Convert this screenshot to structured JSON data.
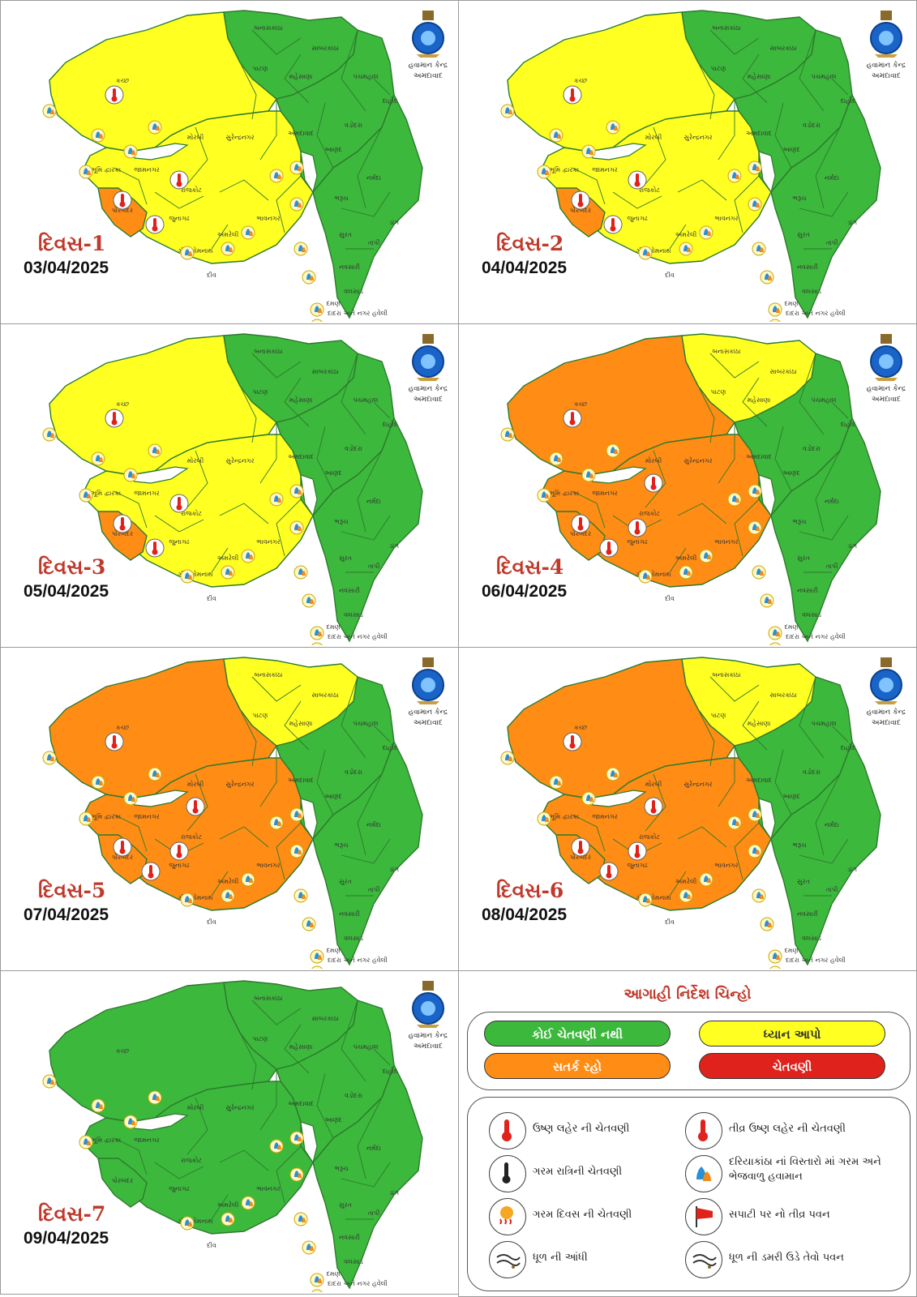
{
  "org": {
    "line1": "હવામાન કેન્દ્ર",
    "line2": "અમદાવાદ"
  },
  "colors": {
    "green": "#3cb83c",
    "yellow": "#ffff22",
    "orange": "#ff8c14",
    "red": "#e0221c",
    "border": "#2d7a2d"
  },
  "maps": [
    {
      "day": "દિવસ-1",
      "date": "03/04/2025",
      "regions": {
        "kutch": "yellow",
        "saurashtra": "yellow",
        "porbandar": "orange",
        "north": "green",
        "central": "green",
        "south": "green"
      }
    },
    {
      "day": "દિવસ-2",
      "date": "04/04/2025",
      "regions": {
        "kutch": "yellow",
        "saurashtra": "yellow",
        "porbandar": "orange",
        "north": "green",
        "central": "green",
        "south": "green"
      }
    },
    {
      "day": "દિવસ-3",
      "date": "05/04/2025",
      "regions": {
        "kutch": "yellow",
        "saurashtra": "yellow",
        "porbandar": "orange",
        "north": "green",
        "central": "green",
        "south": "green"
      }
    },
    {
      "day": "દિવસ-4",
      "date": "06/04/2025",
      "regions": {
        "kutch": "orange",
        "saurashtra": "orange",
        "porbandar": "orange",
        "north": "yellow",
        "central": "green",
        "south": "green"
      }
    },
    {
      "day": "દિવસ-5",
      "date": "07/04/2025",
      "regions": {
        "kutch": "orange",
        "saurashtra": "orange",
        "porbandar": "orange",
        "north": "yellow",
        "central": "green",
        "south": "green"
      }
    },
    {
      "day": "દિવસ-6",
      "date": "08/04/2025",
      "regions": {
        "kutch": "orange",
        "saurashtra": "orange",
        "porbandar": "orange",
        "north": "yellow",
        "central": "green",
        "south": "green"
      }
    },
    {
      "day": "દિવસ-7",
      "date": "09/04/2025",
      "regions": {
        "kutch": "green",
        "saurashtra": "green",
        "porbandar": "green",
        "north": "green",
        "central": "green",
        "south": "green"
      }
    }
  ],
  "legend": {
    "title": "આગાહી નિર્દેશ ચિન્હો",
    "levels": [
      {
        "label": "કોઈ ચેતવણી નથી",
        "color": "#3cb83c",
        "text_color": "#ffffff"
      },
      {
        "label": "ધ્યાન આપો",
        "color": "#ffff22",
        "text_color": "#333333"
      },
      {
        "label": "સતર્ક રહો",
        "color": "#ff8c14",
        "text_color": "#ffffff"
      },
      {
        "label": "ચેતવણી",
        "color": "#e0221c",
        "text_color": "#ffffff"
      }
    ],
    "icons": [
      {
        "name": "heatwave-icon",
        "text": "ઉષ્ણ લહેર ની ચેતવણી"
      },
      {
        "name": "severe-heatwave-icon",
        "text": "તીવ્ર ઉષ્ણ લહેર ની ચેતવણી"
      },
      {
        "name": "warm-night-icon",
        "text": "ગરમ રાત્રિની ચેતવણી"
      },
      {
        "name": "hot-humid-icon",
        "text": "દરિયાકાંઠા નાં વિસ્તારો માં ગરમ અને ભેજવાળુ હવામાન"
      },
      {
        "name": "hot-day-icon",
        "text": "ગરમ દિવસ  ની ચેતવણી"
      },
      {
        "name": "strong-wind-icon",
        "text": "સપાટી પર નો તીવ્ર પવન"
      },
      {
        "name": "dust-storm-icon",
        "text": "ધૂળ ની આંધી"
      },
      {
        "name": "dust-raising-wind-icon",
        "text": "ધૂળ ની ડમરી ઉડે તેવો પવન"
      }
    ]
  }
}
